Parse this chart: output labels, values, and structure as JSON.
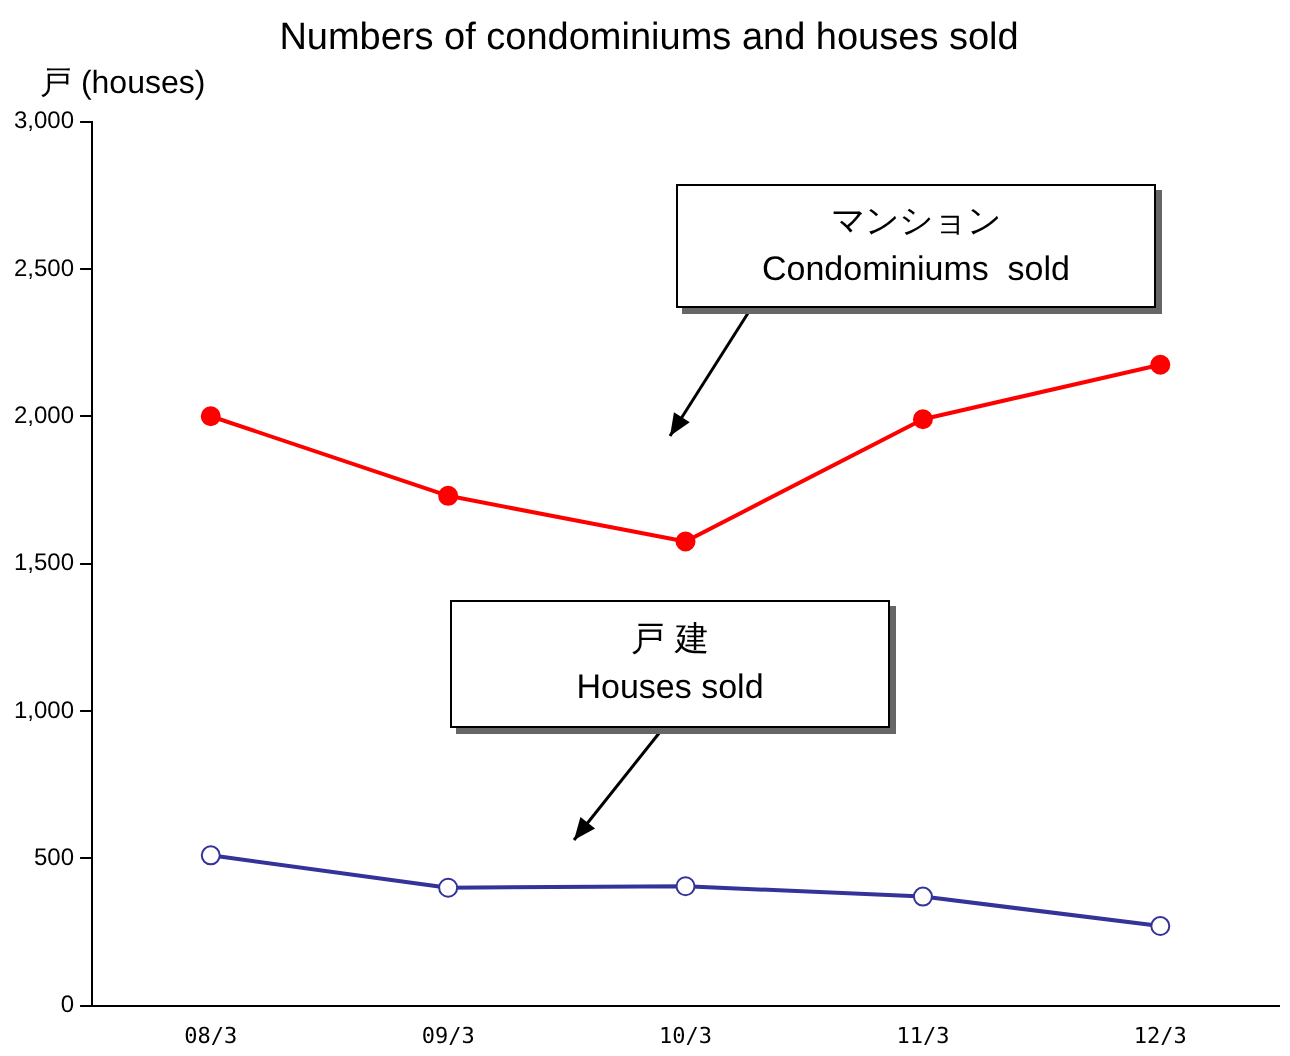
{
  "chart_data": {
    "type": "line",
    "title": "Numbers of condominiums and houses sold",
    "ylabel": "戸 (houses)",
    "categories": [
      "08/3",
      "09/3",
      "10/3",
      "11/3",
      "12/3"
    ],
    "series": [
      {
        "name": "マンション\nCondominiums  sold",
        "color": "#ff0000",
        "marker": "circle",
        "values": [
          2000,
          1730,
          1575,
          1990,
          2175
        ]
      },
      {
        "name": "戸 建\nHouses sold",
        "color": "#333399",
        "marker": "circle-open",
        "values": [
          510,
          400,
          405,
          370,
          270
        ]
      }
    ],
    "ylim": [
      0,
      3000
    ],
    "yticks": [
      {
        "value": 0,
        "label": "0"
      },
      {
        "value": 500,
        "label": "500"
      },
      {
        "value": 1000,
        "label": "1,000"
      },
      {
        "value": 1500,
        "label": "1,500"
      },
      {
        "value": 2000,
        "label": "2,000"
      },
      {
        "value": 2500,
        "label": "2,500"
      },
      {
        "value": 3000,
        "label": "3,000"
      }
    ],
    "grid": false,
    "legend": "top right",
    "line_style": "solid"
  }
}
